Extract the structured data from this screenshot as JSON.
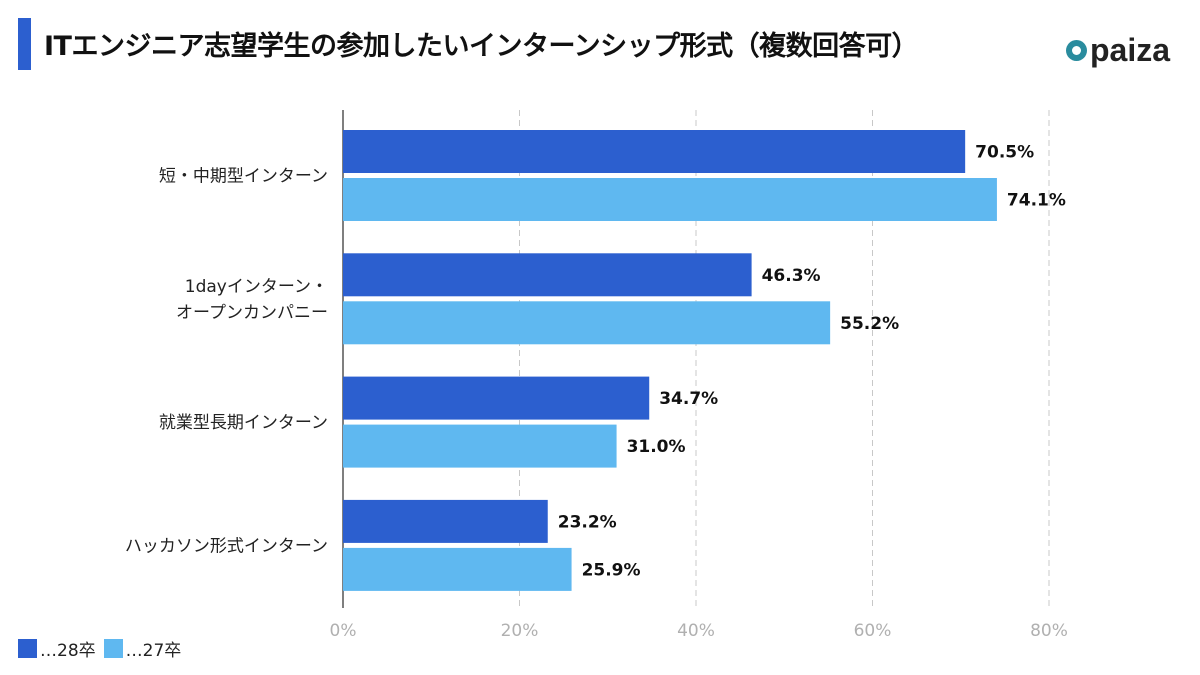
{
  "title": "ITエンジニア志望学生の参加したいインターンシップ形式（複数回答可）",
  "logo_text": "paiza",
  "chart_data": {
    "type": "bar",
    "orientation": "horizontal",
    "title": "ITエンジニア志望学生の参加したいインターンシップ形式（複数回答可）",
    "categories": [
      [
        "短・中期型インターン"
      ],
      [
        "1dayインターン・",
        "オープンカンパニー"
      ],
      [
        "就業型長期インターン"
      ],
      [
        "ハッカソン形式インターン"
      ]
    ],
    "series": [
      {
        "name": "…28卒",
        "color": "#2c5fcf",
        "values": [
          70.5,
          46.3,
          34.7,
          23.2
        ]
      },
      {
        "name": "…27卒",
        "color": "#5fb8f0",
        "values": [
          74.1,
          55.2,
          31.0,
          25.9
        ]
      }
    ],
    "xlim": [
      0,
      80
    ],
    "xticks": [
      "0%",
      "20%",
      "40%",
      "60%",
      "80%"
    ],
    "grid": true,
    "legend": "bottom-left"
  }
}
